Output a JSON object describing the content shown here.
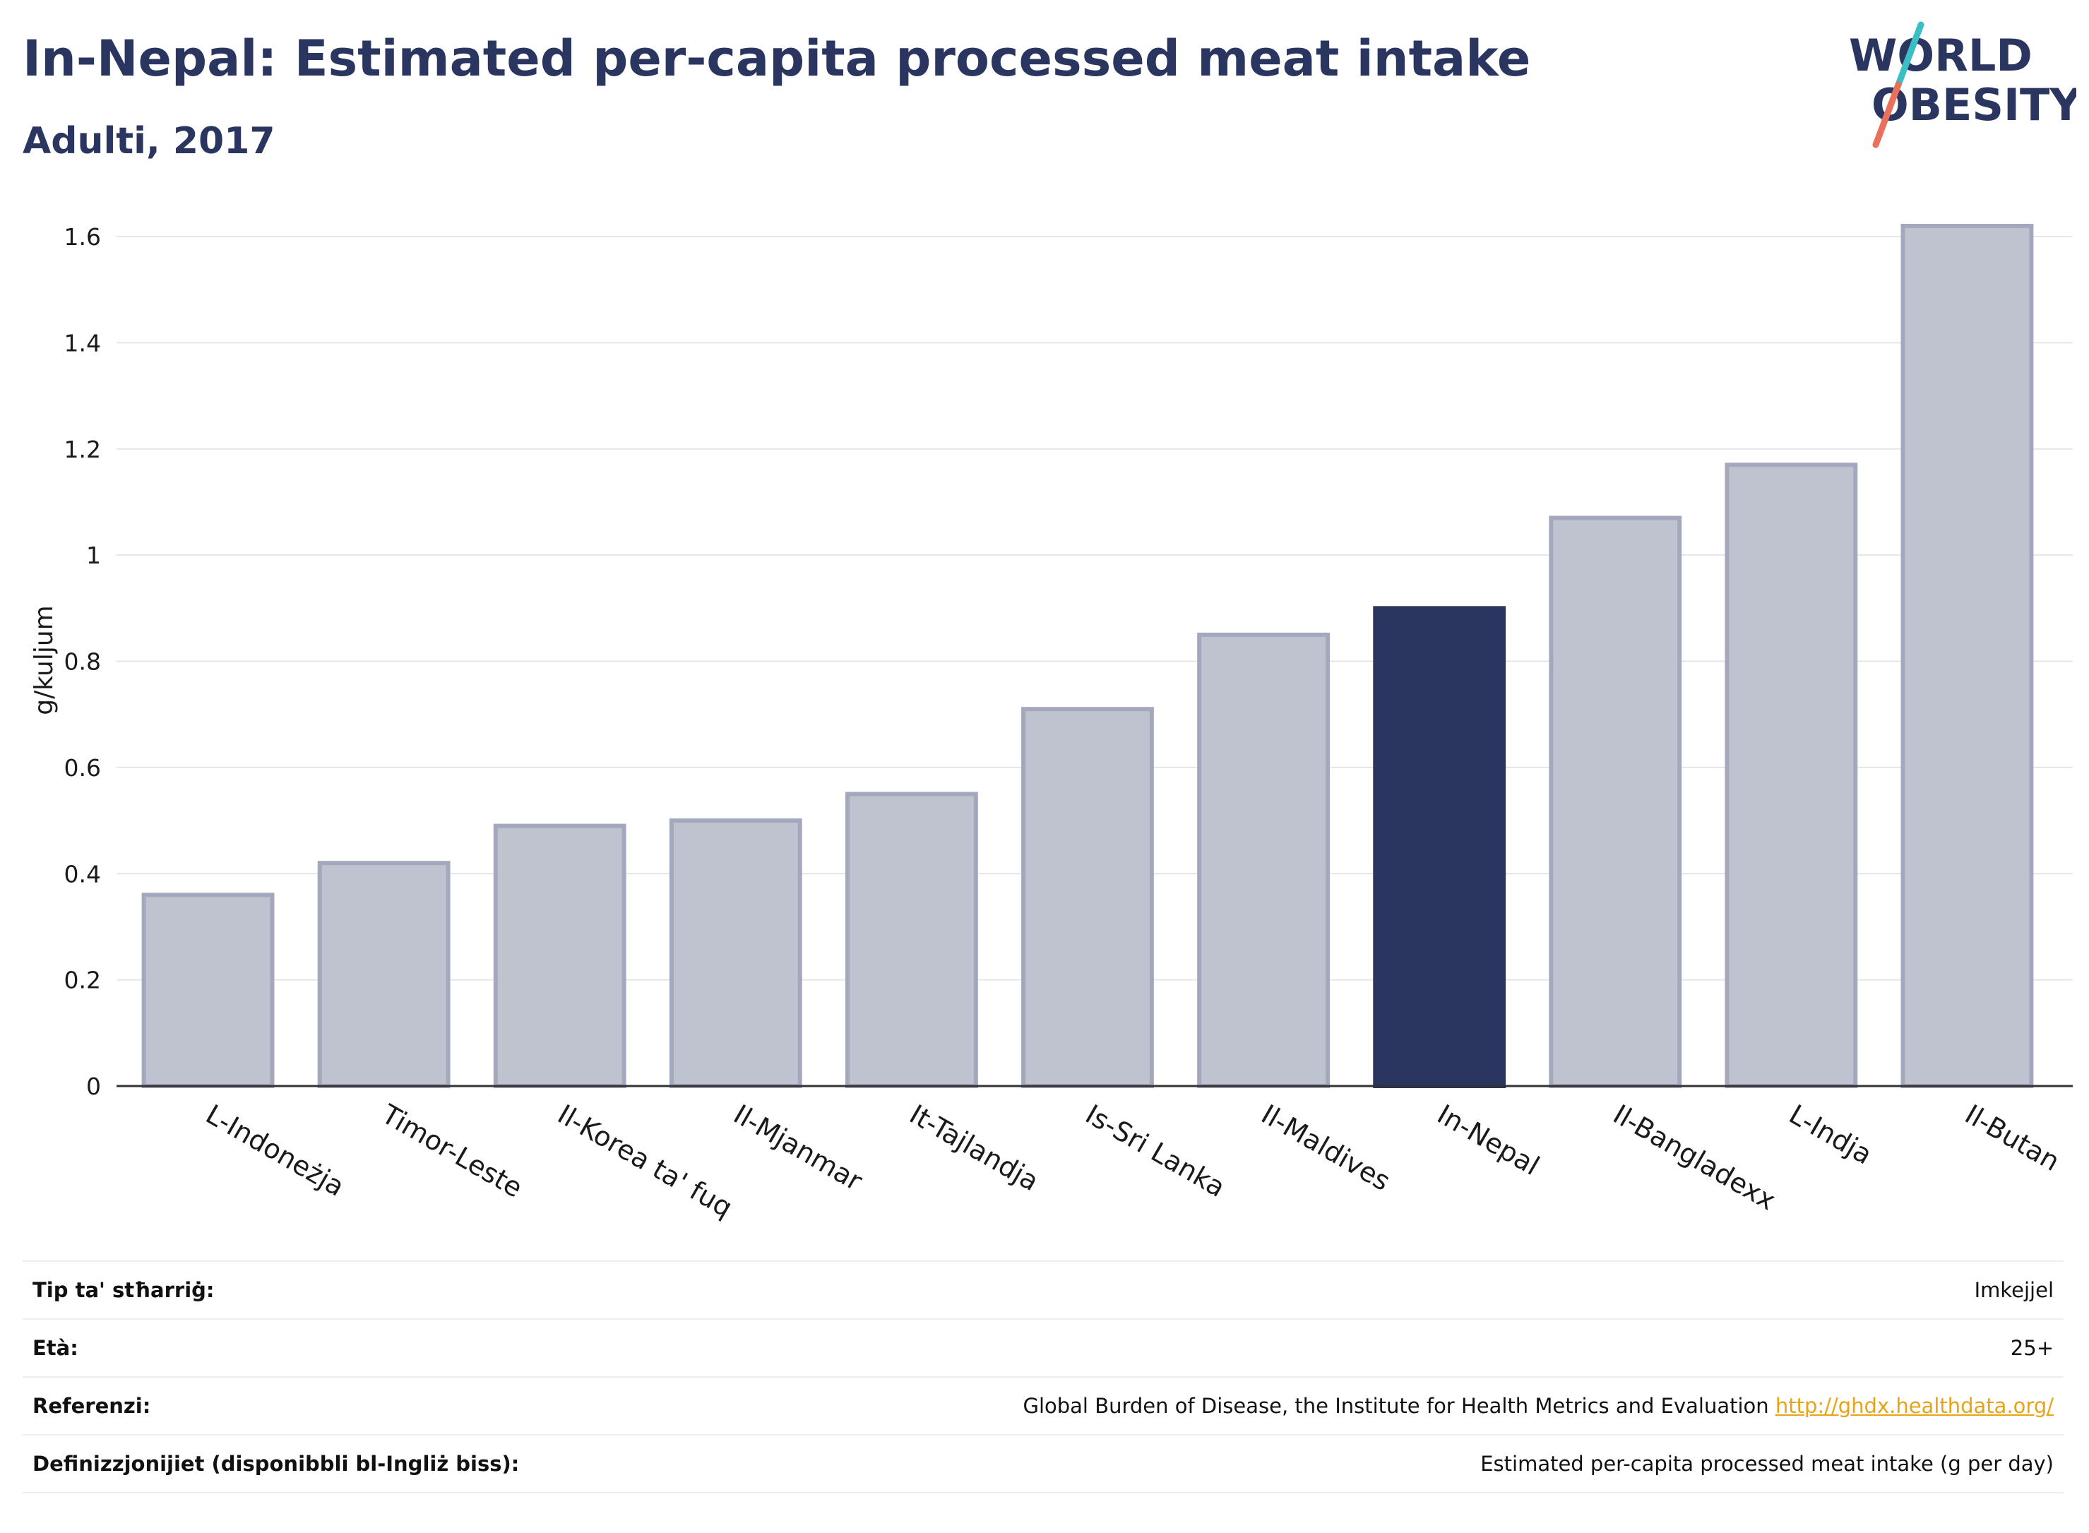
{
  "header": {
    "title": "In-Nepal: Estimated per-capita processed meat intake",
    "subtitle": "Adulti, 2017"
  },
  "logo": {
    "line1": "WORLD",
    "line2": "OBESITY",
    "icon": "world-obesity-logo"
  },
  "colors": {
    "highlight": "#2a3560",
    "bar_fill": "#bfc2cf",
    "bar_stroke": "#a3a8bd",
    "logo_teal": "#3bbfc4",
    "logo_coral": "#e9705b",
    "link": "#e8a317"
  },
  "chart_data": {
    "type": "bar",
    "title": "",
    "xlabel": "",
    "ylabel": "g/kuljum",
    "ylim": [
      0,
      1.6
    ],
    "yticks": [
      "0",
      "0.2",
      "0.4",
      "0.6",
      "0.8",
      "1",
      "1.2",
      "1.4",
      "1.6"
    ],
    "grid": true,
    "highlight": "In-Nepal",
    "categories": [
      "L-Indoneżja",
      "Timor-Leste",
      "Il-Korea ta' fuq",
      "Il-Mjanmar",
      "It-Tajlandja",
      "Is-Sri Lanka",
      "Il-Maldives",
      "In-Nepal",
      "Il-Bangladexx",
      "L-Indja",
      "Il-Butan"
    ],
    "values": [
      0.36,
      0.42,
      0.49,
      0.5,
      0.55,
      0.71,
      0.85,
      0.9,
      1.07,
      1.17,
      1.62
    ]
  },
  "info": {
    "rows": [
      {
        "label": "Tip ta' stħarriġ:",
        "value": "Imkejjel"
      },
      {
        "label": "Età:",
        "value": "25+"
      },
      {
        "label": "Referenzi:",
        "value": "Global Burden of Disease, the Institute for Health Metrics and Evaluation",
        "link": "http://ghdx.healthdata.org/"
      },
      {
        "label": "Definizzjonijiet (disponibbli bl-Ingliż biss):",
        "value": "Estimated per-capita processed meat intake (g per day)"
      }
    ]
  }
}
